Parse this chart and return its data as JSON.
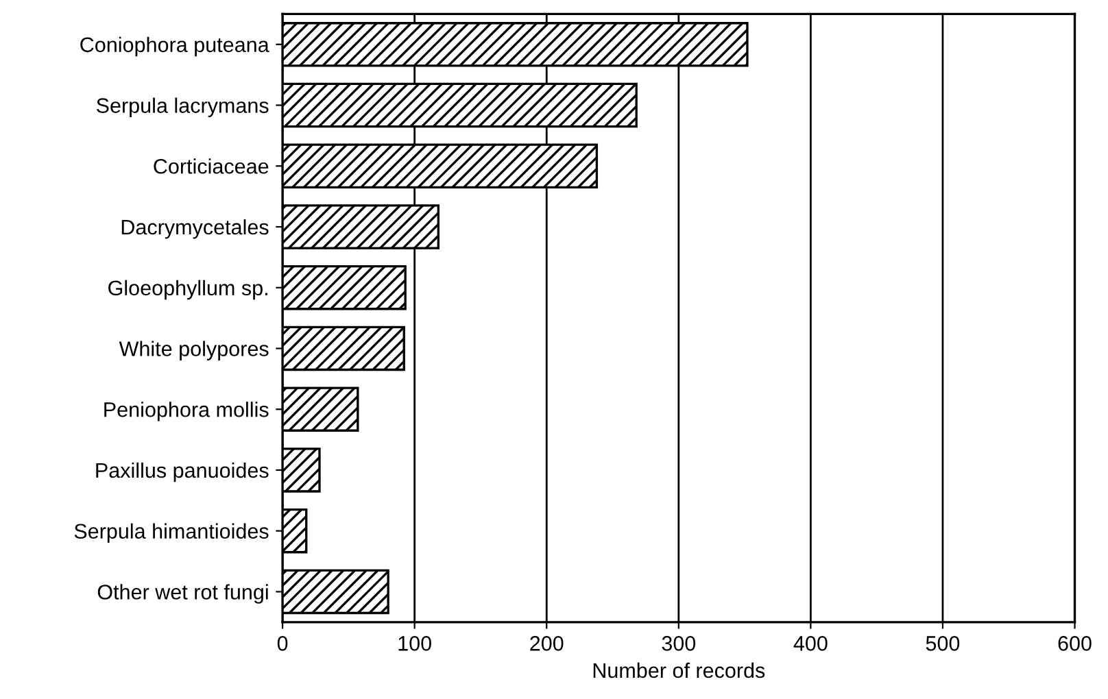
{
  "chart_data": {
    "type": "bar",
    "orientation": "horizontal",
    "xlabel": "Number of records",
    "categories": [
      "Coniophora puteana",
      "Serpula lacrymans",
      "Corticiaceae",
      "Dacrymycetales",
      "Gloeophyllum sp.",
      "White polypores",
      "Peniophora mollis",
      "Paxillus panuoides",
      "Serpula himantioides",
      "Other wet rot fungi"
    ],
    "values": [
      352,
      268,
      238,
      118,
      93,
      92,
      57,
      28,
      18,
      80
    ],
    "color": "#000000",
    "xlim": [
      0,
      600
    ],
    "xticks": [
      0,
      100,
      200,
      300,
      400,
      500,
      600
    ],
    "grid": "x"
  }
}
